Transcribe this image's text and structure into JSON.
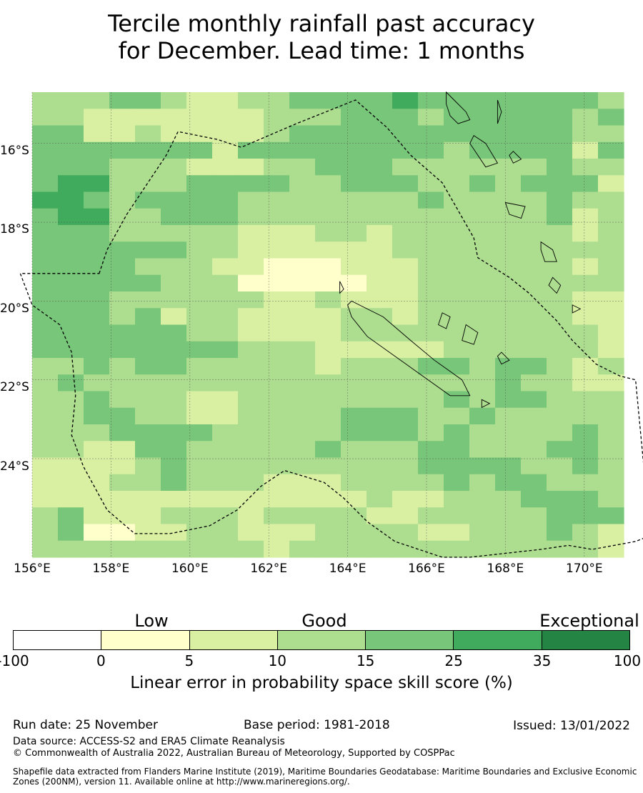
{
  "title": {
    "line1": "Tercile monthly rainfall past accuracy",
    "line2": "for December. Lead time: 1 months"
  },
  "map": {
    "lon_labels": [
      "156°E",
      "158°E",
      "160°E",
      "162°E",
      "164°E",
      "166°E",
      "168°E",
      "170°E"
    ],
    "lat_labels": [
      "16°S",
      "18°S",
      "20°S",
      "22°S",
      "24°S"
    ],
    "lon_range": [
      156,
      171
    ],
    "lat_range": [
      -26.5,
      -14.7
    ],
    "skill_grid": [
      "33344322334444544444443",
      "33222222233344434444434",
      "44223222234444444444433",
      "44444442444444443444424",
      "44433322233444333333433",
      "45533344443344433434442",
      "55434444333333343333433",
      "45533444333333333333423",
      "44433333222332333333323",
      "44444433222222333333333",
      "44443332211122233333323",
      "44444333111112233333333",
      "44433333322322233333322",
      "44434233222233233333322",
      "44444433222233333333332",
      "44444444333222223333332",
      "33434433333233344344323",
      "34333333333333333343322",
      "33433322333333334344333",
      "33443322333344433433333",
      "33344443333344434333343",
      "33224433333433344333443",
      "22223433333333344443343",
      "22233433322233334344333",
      "22222222222223223334443",
      "34222333233332233333444",
      "34112233222333322333432",
      "33333333323333333333332"
    ],
    "eez_boundary": [
      [
        157.7,
        -19.3
      ],
      [
        157.9,
        -18.7
      ],
      [
        158.4,
        -17.8
      ],
      [
        159.4,
        -16.3
      ],
      [
        159.7,
        -15.7
      ],
      [
        160.7,
        -15.9
      ],
      [
        161.3,
        -16.1
      ],
      [
        162.7,
        -15.5
      ],
      [
        164.2,
        -14.9
      ],
      [
        165.0,
        -15.6
      ],
      [
        165.6,
        -16.3
      ],
      [
        166.4,
        -17.0
      ],
      [
        166.8,
        -17.7
      ],
      [
        167.2,
        -18.4
      ],
      [
        167.3,
        -18.9
      ],
      [
        168.1,
        -19.4
      ],
      [
        168.6,
        -19.8
      ],
      [
        169.3,
        -20.5
      ],
      [
        169.7,
        -21.0
      ],
      [
        170.3,
        -21.6
      ],
      [
        170.9,
        -21.9
      ],
      [
        171.3,
        -22.0
      ],
      [
        171.5,
        -24.1
      ],
      [
        171.8,
        -25.9
      ],
      [
        171.3,
        -26.1
      ],
      [
        170.2,
        -26.3
      ],
      [
        169.6,
        -26.2
      ],
      [
        168.9,
        -26.3
      ],
      [
        167.1,
        -26.5
      ],
      [
        166.4,
        -26.5
      ],
      [
        165.2,
        -26.1
      ],
      [
        164.5,
        -25.6
      ],
      [
        163.9,
        -25.0
      ],
      [
        163.4,
        -24.6
      ],
      [
        162.4,
        -24.3
      ],
      [
        161.8,
        -24.7
      ],
      [
        161.2,
        -25.3
      ],
      [
        160.5,
        -25.7
      ],
      [
        159.5,
        -25.9
      ],
      [
        158.6,
        -25.9
      ],
      [
        157.9,
        -25.3
      ],
      [
        157.3,
        -24.2
      ],
      [
        157.0,
        -23.4
      ],
      [
        157.1,
        -22.4
      ],
      [
        157.0,
        -21.3
      ],
      [
        156.7,
        -20.6
      ],
      [
        156.0,
        -20.1
      ],
      [
        155.7,
        -19.3
      ]
    ],
    "coastlines": [
      [
        [
          164.1,
          -20.0
        ],
        [
          164.9,
          -20.4
        ],
        [
          165.6,
          -21.0
        ],
        [
          166.2,
          -21.5
        ],
        [
          166.9,
          -22.0
        ],
        [
          167.1,
          -22.4
        ],
        [
          166.6,
          -22.4
        ],
        [
          165.9,
          -21.9
        ],
        [
          165.2,
          -21.4
        ],
        [
          164.5,
          -20.9
        ],
        [
          164.1,
          -20.4
        ],
        [
          164.0,
          -20.1
        ]
      ],
      [
        [
          166.5,
          -14.7
        ],
        [
          166.7,
          -14.9
        ],
        [
          167.0,
          -15.2
        ],
        [
          167.1,
          -15.4
        ],
        [
          166.8,
          -15.5
        ],
        [
          166.6,
          -15.3
        ],
        [
          166.5,
          -15.0
        ]
      ],
      [
        [
          167.8,
          -14.9
        ],
        [
          167.9,
          -15.2
        ],
        [
          167.8,
          -15.5
        ],
        [
          167.8,
          -15.2
        ]
      ],
      [
        [
          167.2,
          -15.8
        ],
        [
          167.5,
          -16.0
        ],
        [
          167.8,
          -16.5
        ],
        [
          167.5,
          -16.6
        ],
        [
          167.3,
          -16.3
        ],
        [
          167.1,
          -16.0
        ]
      ],
      [
        [
          168.2,
          -16.2
        ],
        [
          168.4,
          -16.4
        ],
        [
          168.2,
          -16.5
        ],
        [
          168.1,
          -16.3
        ]
      ],
      [
        [
          168.0,
          -17.5
        ],
        [
          168.5,
          -17.6
        ],
        [
          168.4,
          -17.9
        ],
        [
          168.1,
          -17.8
        ]
      ],
      [
        [
          168.9,
          -18.5
        ],
        [
          169.2,
          -18.7
        ],
        [
          169.3,
          -19.0
        ],
        [
          169.0,
          -19.0
        ],
        [
          168.9,
          -18.7
        ]
      ],
      [
        [
          169.2,
          -19.4
        ],
        [
          169.4,
          -19.6
        ],
        [
          169.3,
          -19.8
        ],
        [
          169.1,
          -19.6
        ]
      ],
      [
        [
          167.0,
          -20.6
        ],
        [
          167.3,
          -20.8
        ],
        [
          167.2,
          -21.1
        ],
        [
          166.9,
          -21.0
        ]
      ],
      [
        [
          167.9,
          -21.3
        ],
        [
          168.1,
          -21.5
        ],
        [
          167.9,
          -21.6
        ],
        [
          167.8,
          -21.4
        ]
      ],
      [
        [
          166.4,
          -20.3
        ],
        [
          166.6,
          -20.4
        ],
        [
          166.5,
          -20.7
        ],
        [
          166.3,
          -20.6
        ]
      ],
      [
        [
          167.4,
          -22.5
        ],
        [
          167.6,
          -22.6
        ],
        [
          167.4,
          -22.7
        ]
      ],
      [
        [
          169.7,
          -20.1
        ],
        [
          169.9,
          -20.2
        ],
        [
          169.7,
          -20.3
        ]
      ],
      [
        [
          163.8,
          -19.5
        ],
        [
          163.9,
          -19.7
        ],
        [
          163.8,
          -19.8
        ]
      ]
    ]
  },
  "colorbar": {
    "categories": [
      "Low",
      "Good",
      "Exceptional"
    ],
    "ticks": [
      "-100",
      "0",
      "5",
      "10",
      "15",
      "25",
      "35",
      "100"
    ],
    "colors": [
      "#ffffff",
      "#ffffcc",
      "#d9f0a3",
      "#addd8e",
      "#78c679",
      "#41ab5d",
      "#238443"
    ],
    "title": "Linear error in probability space skill score (%)"
  },
  "footer": {
    "run_date": "Run date: 25 November",
    "base_period": "Base period: 1981-2018",
    "issued": "Issued: 13/01/2022",
    "data_source": "Data source: ACCESS-S2 and ERA5 Climate Reanalysis",
    "copyright": "© Commonwealth of Australia 2022, Australian Bureau of Meteorology, Supported by COSPPac",
    "shapefile_line1": "Shapefile data extracted from Flanders Marine Institute (2019), Maritime Boundaries Geodatabase: Maritime Boundaries and Exclusive Economic",
    "shapefile_line2": "Zones (200NM), version 11. Available online at http://www.marineregions.org/."
  }
}
